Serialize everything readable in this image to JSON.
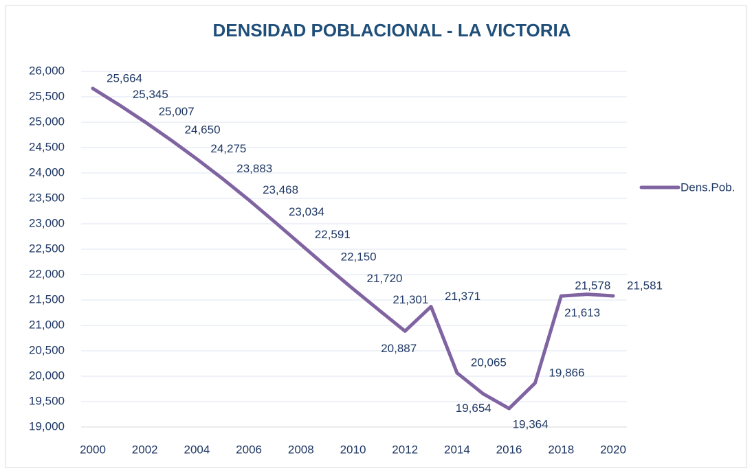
{
  "chart_data": {
    "type": "line",
    "title": "DENSIDAD POBLACIONAL - LA VICTORIA",
    "x": [
      2000,
      2001,
      2002,
      2003,
      2004,
      2005,
      2006,
      2007,
      2008,
      2009,
      2010,
      2011,
      2012,
      2013,
      2014,
      2015,
      2016,
      2017,
      2018,
      2019,
      2020
    ],
    "series": [
      {
        "name": "Dens.Pob.",
        "color": "#8064a2",
        "values": [
          25664,
          25345,
          25007,
          24650,
          24275,
          23883,
          23468,
          23034,
          22591,
          22150,
          21720,
          21301,
          20887,
          21371,
          20065,
          19654,
          19364,
          19866,
          21578,
          21613,
          21581
        ],
        "value_labels": [
          "25,664",
          "25,345",
          "25,007",
          "24,650",
          "24,275",
          "23,883",
          "23,468",
          "23,034",
          "22,591",
          "22,150",
          "21,720",
          "21,301",
          "20,887",
          "21,371",
          "20,065",
          "19,654",
          "19,364",
          "19,866",
          "21,578",
          "21,613",
          "21,581"
        ]
      }
    ],
    "xlim": [
      2000,
      2020
    ],
    "xticks": [
      2000,
      2002,
      2004,
      2006,
      2008,
      2010,
      2012,
      2014,
      2016,
      2018,
      2020
    ],
    "ylim": [
      19000,
      26000
    ],
    "yticks": [
      {
        "value": 19000,
        "label": "19,000"
      },
      {
        "value": 19500,
        "label": "19,500"
      },
      {
        "value": 20000,
        "label": "20,000"
      },
      {
        "value": 20500,
        "label": "20,500"
      },
      {
        "value": 21000,
        "label": "21,000"
      },
      {
        "value": 21500,
        "label": "21,500"
      },
      {
        "value": 22000,
        "label": "22,000"
      },
      {
        "value": 22500,
        "label": "22,500"
      },
      {
        "value": 23000,
        "label": "23,000"
      },
      {
        "value": 23500,
        "label": "23,500"
      },
      {
        "value": 24000,
        "label": "24,000"
      },
      {
        "value": 24500,
        "label": "24,500"
      },
      {
        "value": 25000,
        "label": "25,000"
      },
      {
        "value": 25500,
        "label": "25,500"
      },
      {
        "value": 26000,
        "label": "26,000"
      }
    ],
    "grid": true,
    "legend": "right"
  }
}
